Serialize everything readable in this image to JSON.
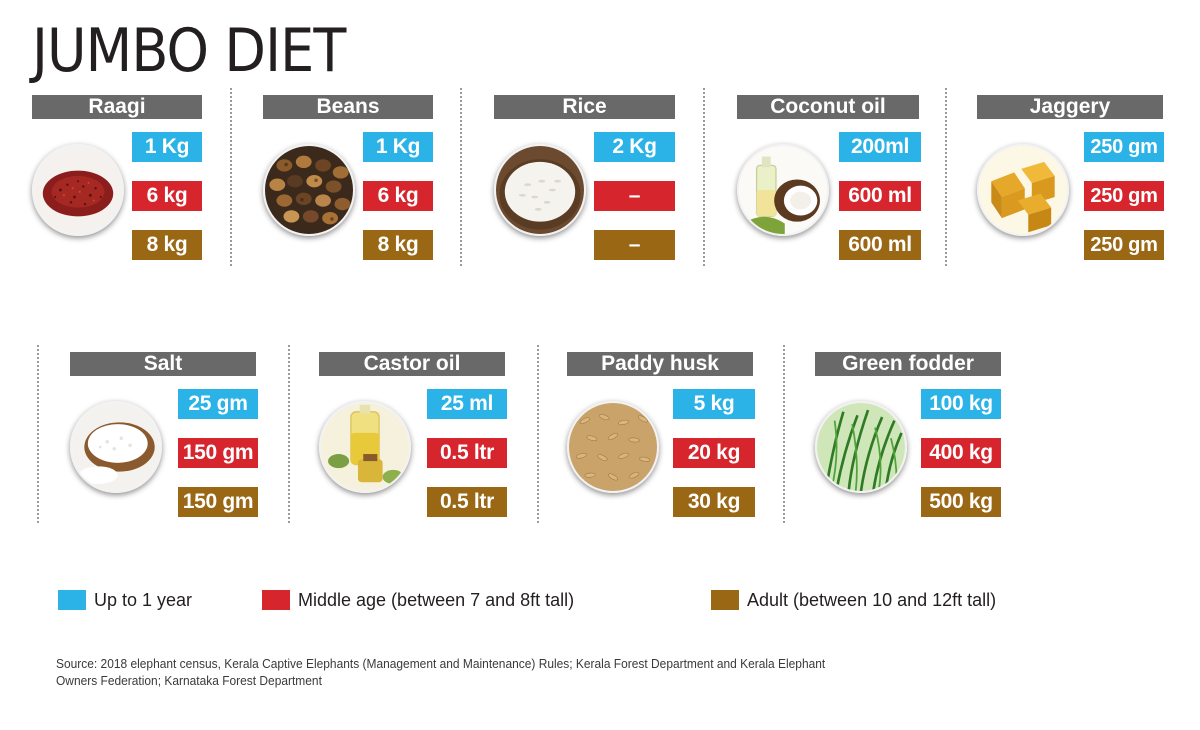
{
  "title": "JUMBO DIET",
  "colors": {
    "young": "#2bb3e8",
    "middle": "#d7252e",
    "adult": "#9a6715",
    "header": "#696969"
  },
  "legend": {
    "young": "Up to 1 year",
    "middle": "Middle age (between 7 and 8ft tall)",
    "adult": "Adult (between 10 and 12ft tall)"
  },
  "items": [
    {
      "name": "Raagi",
      "young": "1 Kg",
      "middle": "6 kg",
      "adult": "8 kg",
      "image": "ragi-photo"
    },
    {
      "name": "Beans",
      "young": "1 Kg",
      "middle": "6 kg",
      "adult": "8 kg",
      "image": "beans-photo"
    },
    {
      "name": "Rice",
      "young": "2 Kg",
      "middle": "–",
      "adult": "–",
      "image": "rice-photo"
    },
    {
      "name": "Coconut oil",
      "young": "200ml",
      "middle": "600 ml",
      "adult": "600 ml",
      "image": "coconut-oil-photo"
    },
    {
      "name": "Jaggery",
      "young": "250 gm",
      "middle": "250 gm",
      "adult": "250 gm",
      "image": "jaggery-photo"
    },
    {
      "name": "Salt",
      "young": "25 gm",
      "middle": "150 gm",
      "adult": "150 gm",
      "image": "salt-photo"
    },
    {
      "name": "Castor oil",
      "young": "25 ml",
      "middle": "0.5 ltr",
      "adult": "0.5 ltr",
      "image": "castor-oil-photo"
    },
    {
      "name": "Paddy husk",
      "young": "5 kg",
      "middle": "20 kg",
      "adult": "30 kg",
      "image": "paddy-husk-photo"
    },
    {
      "name": "Green fodder",
      "young": "100 kg",
      "middle": "400 kg",
      "adult": "500 kg",
      "image": "green-fodder-photo"
    }
  ],
  "source": "Source: 2018 elephant census, Kerala Captive Elephants (Management and Maintenance) Rules; Kerala Forest Department and Kerala Elephant Owners Federation; Karnataka Forest Department"
}
